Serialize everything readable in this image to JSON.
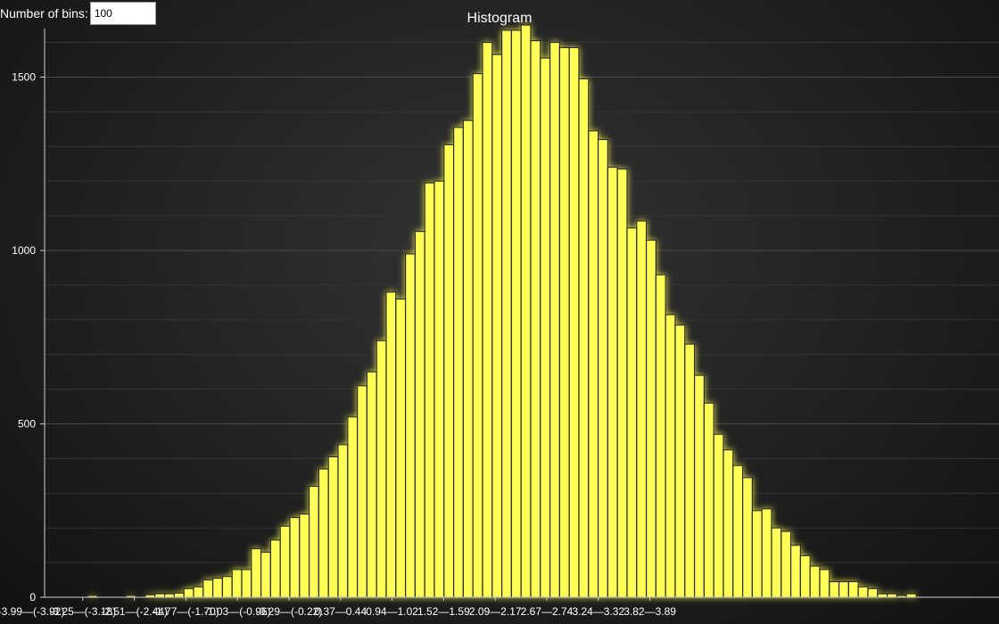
{
  "controls": {
    "bins_label": "Number of bins:",
    "bins_value": "100"
  },
  "colors": {
    "bar_fill": "#ffff57",
    "bar_stroke": "#2a2a2a",
    "glow": "#ffff99",
    "axis": "#cfcfcf",
    "grid": "#3f3f3f"
  },
  "chart_data": {
    "type": "bar",
    "title": "Histogram",
    "xlabel": "",
    "ylabel": "",
    "ylim": [
      0,
      1640
    ],
    "yticks": [
      0,
      500,
      1000,
      1500
    ],
    "grid": true,
    "x_tick_labels": [
      "-3.99—(-3.92)",
      "-3.25—(-3.18)",
      "-2.51—(-2.44)",
      "-1.77—(-1.70)",
      "-1.03—(-0.96)",
      "-0.29—(-0.22)",
      "0.37—0.44",
      "0.94—1.02",
      "1.52—1.59",
      "2.09—2.17",
      "2.67—2.74",
      "3.24—3.32",
      "3.82—3.89"
    ],
    "values": [
      0,
      0,
      0,
      0,
      5,
      0,
      0,
      0,
      5,
      0,
      7,
      10,
      10,
      12,
      25,
      30,
      50,
      55,
      60,
      80,
      80,
      140,
      130,
      165,
      205,
      230,
      240,
      320,
      370,
      405,
      440,
      520,
      610,
      650,
      740,
      880,
      860,
      990,
      1055,
      1195,
      1200,
      1305,
      1355,
      1375,
      1510,
      1600,
      1565,
      1635,
      1635,
      1650,
      1605,
      1555,
      1600,
      1585,
      1585,
      1495,
      1345,
      1320,
      1240,
      1235,
      1065,
      1085,
      1030,
      930,
      815,
      785,
      730,
      640,
      560,
      470,
      425,
      380,
      345,
      250,
      255,
      200,
      190,
      150,
      120,
      90,
      80,
      45,
      45,
      45,
      30,
      25,
      10,
      10,
      5,
      10,
      0,
      0,
      0,
      0,
      0,
      0,
      0,
      0,
      0,
      0
    ]
  }
}
